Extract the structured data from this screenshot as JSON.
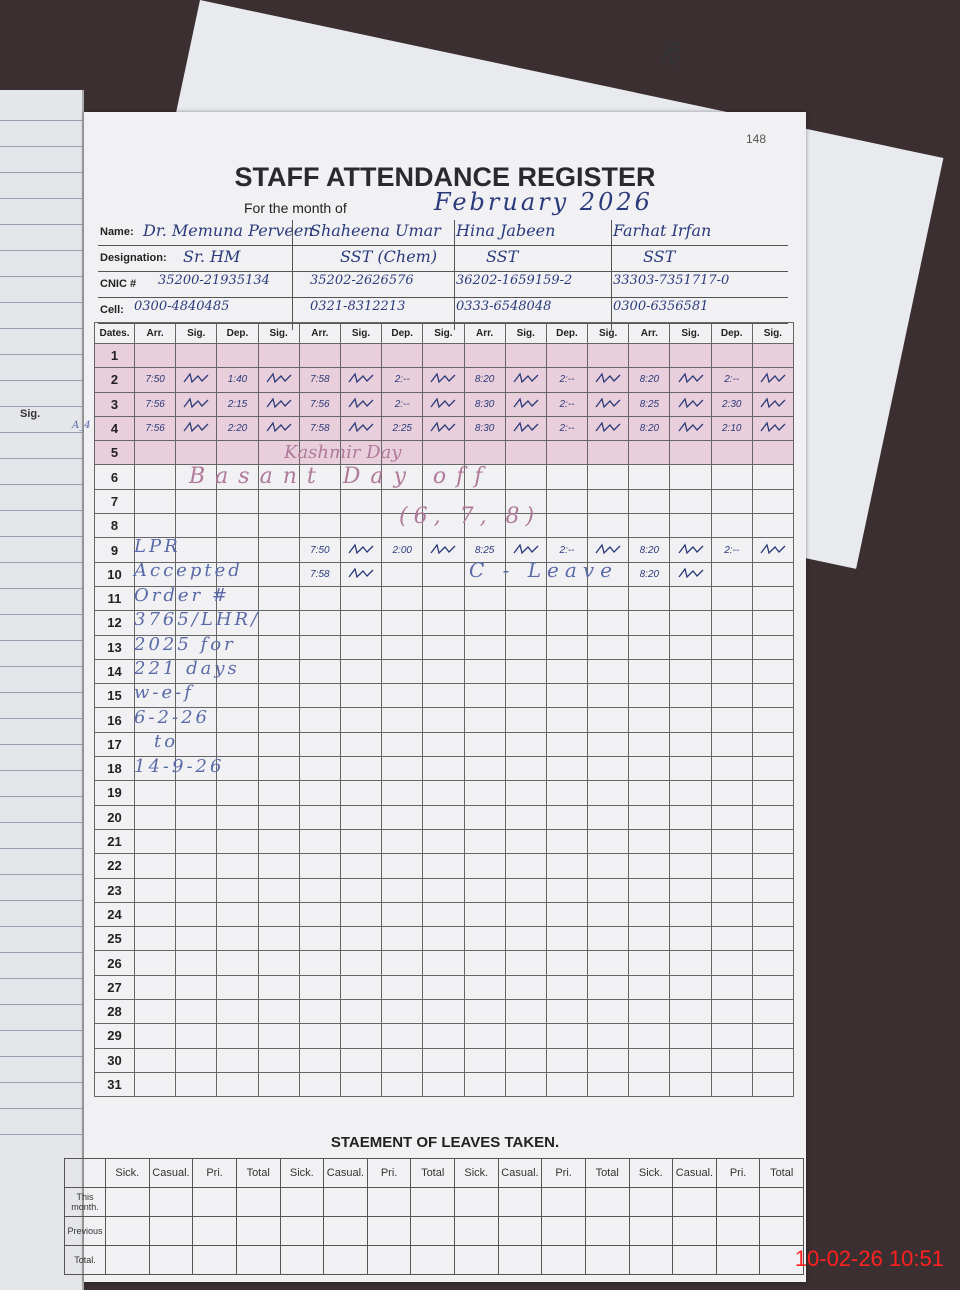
{
  "page_number": "148",
  "title": "STAFF ATTENDANCE REGISTER",
  "month_label": "For the month of",
  "month_value": "February 2026",
  "left_page_sig": "Sig.",
  "calendar_fragment": "29",
  "labels": {
    "name": "Name:",
    "designation": "Designation:",
    "cnic": "CNIC #",
    "cell": "Cell:"
  },
  "staff": [
    {
      "name": "Dr. Memuna Perveen",
      "designation": "Sr. HM",
      "cnic": "35200-21935134",
      "cell": "0300-4840485"
    },
    {
      "name": "Shaheena Umar",
      "designation": "SST (Chem)",
      "cnic": "35202-2626576",
      "cell": "0321-8312213"
    },
    {
      "name": "Hina Jabeen",
      "designation": "SST",
      "cnic": "36202-1659159-2",
      "cell": "0333-6548048"
    },
    {
      "name": "Farhat Irfan",
      "designation": "SST",
      "cnic": "33303-7351717-0",
      "cell": "0300-6356581"
    }
  ],
  "columns": {
    "dates": "Dates.",
    "per_staff": [
      "Arr.",
      "Sig.",
      "Dep.",
      "Sig."
    ]
  },
  "rows": [
    {
      "date": "1",
      "entries": []
    },
    {
      "date": "2",
      "entries": [
        {
          "arr": "7:50",
          "dep": "1:40"
        },
        {
          "arr": "7:58",
          "dep": "2:--"
        },
        {
          "arr": "8:20",
          "dep": "2:--"
        },
        {
          "arr": "8:20",
          "dep": "2:--"
        }
      ]
    },
    {
      "date": "3",
      "entries": [
        {
          "arr": "7:56",
          "dep": "2:15"
        },
        {
          "arr": "7:56",
          "dep": "2:--"
        },
        {
          "arr": "8:30",
          "dep": "2:--"
        },
        {
          "arr": "8:25",
          "dep": "2:30"
        }
      ]
    },
    {
      "date": "4",
      "entries": [
        {
          "arr": "7:56",
          "dep": "2:20"
        },
        {
          "arr": "7:58",
          "dep": "2:25"
        },
        {
          "arr": "8:30",
          "dep": "2:--"
        },
        {
          "arr": "8:20",
          "dep": "2:10"
        }
      ]
    },
    {
      "date": "5",
      "entries": []
    },
    {
      "date": "6",
      "entries": []
    },
    {
      "date": "7",
      "entries": []
    },
    {
      "date": "8",
      "entries": []
    },
    {
      "date": "9",
      "entries": [
        null,
        {
          "arr": "7:50",
          "dep": "2:00"
        },
        {
          "arr": "8:25",
          "dep": "2:--"
        },
        {
          "arr": "8:20",
          "dep": "2:--"
        }
      ]
    },
    {
      "date": "10",
      "entries": [
        null,
        {
          "arr": "7:58",
          "dep": ""
        },
        null,
        {
          "arr": "8:20",
          "dep": ""
        }
      ]
    },
    {
      "date": "11",
      "entries": []
    },
    {
      "date": "12",
      "entries": []
    },
    {
      "date": "13",
      "entries": []
    },
    {
      "date": "14",
      "entries": []
    },
    {
      "date": "15",
      "entries": []
    },
    {
      "date": "16",
      "entries": []
    },
    {
      "date": "17",
      "entries": []
    },
    {
      "date": "18",
      "entries": []
    },
    {
      "date": "19",
      "entries": []
    },
    {
      "date": "20",
      "entries": []
    },
    {
      "date": "21",
      "entries": []
    },
    {
      "date": "22",
      "entries": []
    },
    {
      "date": "23",
      "entries": []
    },
    {
      "date": "24",
      "entries": []
    },
    {
      "date": "25",
      "entries": []
    },
    {
      "date": "26",
      "entries": []
    },
    {
      "date": "27",
      "entries": []
    },
    {
      "date": "28",
      "entries": []
    },
    {
      "date": "29",
      "entries": []
    },
    {
      "date": "30",
      "entries": []
    },
    {
      "date": "31",
      "entries": []
    }
  ],
  "annotations": {
    "margin_note": "A_4",
    "kashmir": "Kashmir Day",
    "basant": "Basant Day off",
    "basant_dates": "(6, 7, 8)",
    "c_leave": "C - Leave",
    "lpr_lines": [
      "LPR",
      "Accepted",
      "Order #",
      "3765/LHR/",
      "2025 for",
      "221 days",
      "w-e-f",
      "6-2-26",
      "to",
      "14-9-26"
    ]
  },
  "leaves": {
    "title": "STAEMENT OF LEAVES TAKEN.",
    "headers": [
      "Sick.",
      "Casual.",
      "Pri.",
      "Total"
    ],
    "row_labels": [
      "This month.",
      "Previous",
      "Total."
    ]
  },
  "timestamp": "10-02-26  10:51",
  "colors": {
    "ink": "#2b3a7a",
    "highlight": "#e9cfdb",
    "timestamp": "#ff2020"
  }
}
